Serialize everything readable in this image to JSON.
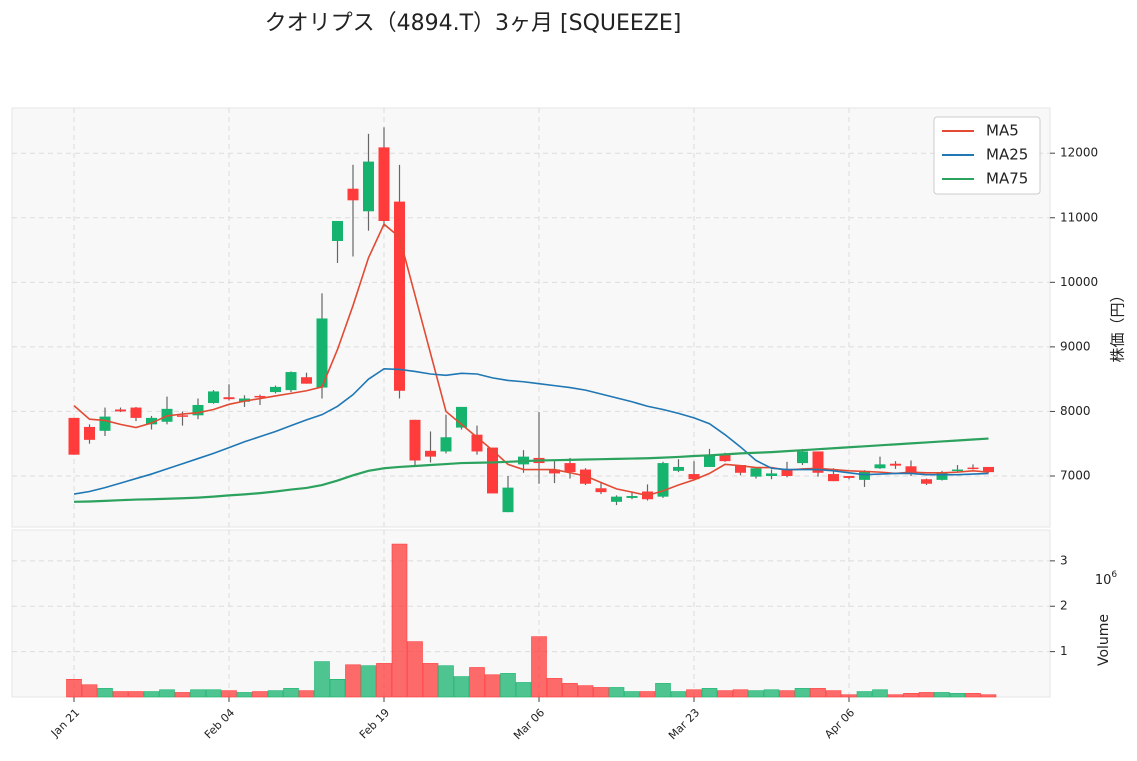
{
  "chart_data": {
    "type": "candlestick",
    "title": "クオリプス（4894.T）3ヶ月 [SQUEEZE]",
    "y_label": "株価（円）",
    "categories": [
      "Jan 21",
      null,
      null,
      null,
      null,
      null,
      null,
      null,
      null,
      null,
      "Feb 04",
      null,
      null,
      null,
      null,
      null,
      null,
      null,
      null,
      null,
      "Feb 19",
      null,
      null,
      null,
      null,
      null,
      null,
      null,
      null,
      null,
      "Mar 06",
      null,
      null,
      null,
      null,
      null,
      null,
      null,
      null,
      null,
      "Mar 23",
      null,
      null,
      null,
      null,
      null,
      null,
      null,
      null,
      null,
      "Apr 06",
      null,
      null,
      null,
      null,
      null,
      null,
      null,
      null,
      null
    ],
    "open": [
      7900,
      7760,
      7700,
      8030,
      8060,
      7800,
      7840,
      7940,
      7940,
      8130,
      8220,
      8150,
      8240,
      8300,
      8330,
      8530,
      8370,
      10640,
      11450,
      11100,
      12090,
      11250,
      7870,
      7390,
      7380,
      7750,
      7640,
      7440,
      6440,
      7180,
      7280,
      7100,
      7200,
      7100,
      6810,
      6600,
      6660,
      6760,
      6680,
      7080,
      7030,
      7140,
      7340,
      7170,
      6990,
      7000,
      7110,
      7200,
      7380,
      7030,
      7000,
      6940,
      7120,
      7190,
      7150,
      6950,
      6940,
      7080,
      7130,
      7140
    ],
    "high": [
      7900,
      7800,
      8060,
      8060,
      8070,
      7930,
      8230,
      8000,
      8200,
      8330,
      8420,
      8250,
      8260,
      8400,
      8620,
      8600,
      9830,
      10950,
      11820,
      12300,
      12400,
      11820,
      7870,
      7690,
      7950,
      8070,
      7780,
      7440,
      7000,
      7400,
      7990,
      7230,
      7280,
      7120,
      6890,
      6700,
      6760,
      6870,
      7220,
      7260,
      7230,
      7420,
      7360,
      7170,
      7130,
      7100,
      7220,
      7420,
      7380,
      7120,
      7000,
      7090,
      7300,
      7230,
      7240,
      6960,
      7080,
      7170,
      7180,
      7140
    ],
    "low": [
      7330,
      7500,
      7620,
      7990,
      7850,
      7720,
      7800,
      7780,
      7880,
      8120,
      8170,
      8070,
      8100,
      8280,
      8300,
      8430,
      8200,
      10300,
      10400,
      10800,
      10860,
      8200,
      7160,
      7210,
      7350,
      7720,
      7330,
      6730,
      6440,
      7050,
      6880,
      6890,
      6960,
      6860,
      6720,
      6550,
      6640,
      6620,
      6660,
      7060,
      6950,
      7140,
      7220,
      7010,
      6960,
      6950,
      6980,
      7170,
      6990,
      6920,
      6950,
      6830,
      7110,
      7110,
      7000,
      6860,
      6930,
      7060,
      7100,
      7050
    ],
    "close": [
      7330,
      7560,
      7920,
      8000,
      7900,
      7900,
      8040,
      7920,
      8100,
      8310,
      8190,
      8200,
      8220,
      8380,
      8610,
      8430,
      9440,
      10950,
      11270,
      11870,
      10950,
      8320,
      7240,
      7300,
      7600,
      8070,
      7380,
      6730,
      6820,
      7300,
      7200,
      7040,
      7060,
      6880,
      6750,
      6680,
      6690,
      6640,
      7200,
      7140,
      6950,
      7320,
      7230,
      7050,
      7120,
      7040,
      7000,
      7380,
      7050,
      6920,
      6970,
      7070,
      7180,
      7160,
      7030,
      6880,
      7060,
      7100,
      7110,
      7060
    ],
    "up_color": "#16b36e",
    "down_color": "#ff3b3b",
    "series": [
      {
        "name": "MA5",
        "color": "#e24a33",
        "values": [
          8090,
          7880,
          7860,
          7800,
          7750,
          7820,
          7930,
          7960,
          7980,
          8030,
          8110,
          8160,
          8200,
          8240,
          8280,
          8320,
          8380,
          8960,
          9640,
          10380,
          10900,
          10700,
          9800,
          8900,
          8000,
          7800,
          7600,
          7400,
          7180,
          7100,
          7100,
          7100,
          7050,
          7000,
          6900,
          6800,
          6750,
          6700,
          6770,
          6860,
          6940,
          7040,
          7180,
          7160,
          7130,
          7130,
          7090,
          7110,
          7120,
          7100,
          7080,
          7070,
          7060,
          7040,
          7060,
          7050,
          7050,
          7060,
          7080,
          7060
        ]
      },
      {
        "name": "MA25",
        "color": "#1f77b4",
        "values": [
          6720,
          6760,
          6820,
          6890,
          6960,
          7030,
          7110,
          7190,
          7270,
          7350,
          7440,
          7530,
          7610,
          7690,
          7780,
          7870,
          7950,
          8080,
          8260,
          8500,
          8660,
          8650,
          8620,
          8580,
          8560,
          8590,
          8580,
          8520,
          8480,
          8460,
          8430,
          8400,
          8370,
          8330,
          8270,
          8210,
          8150,
          8080,
          8030,
          7970,
          7900,
          7810,
          7640,
          7450,
          7240,
          7120,
          7100,
          7100,
          7100,
          7080,
          7050,
          7020,
          7030,
          7040,
          7040,
          7020,
          7020,
          7020,
          7030,
          7040
        ]
      },
      {
        "name": "MA75",
        "color": "#2ca25f",
        "values": [
          6600,
          6605,
          6615,
          6625,
          6635,
          6640,
          6648,
          6655,
          6665,
          6680,
          6700,
          6715,
          6735,
          6760,
          6790,
          6815,
          6860,
          6930,
          7010,
          7080,
          7120,
          7140,
          7155,
          7170,
          7185,
          7200,
          7205,
          7210,
          7220,
          7230,
          7240,
          7245,
          7250,
          7255,
          7260,
          7265,
          7270,
          7275,
          7285,
          7295,
          7310,
          7320,
          7335,
          7350,
          7360,
          7370,
          7385,
          7400,
          7415,
          7430,
          7445,
          7460,
          7475,
          7490,
          7505,
          7520,
          7535,
          7550,
          7565,
          7580
        ]
      }
    ],
    "ylim": [
      6210,
      12700
    ],
    "yticks": [
      7000,
      8000,
      9000,
      10000,
      11000,
      12000
    ],
    "grid": true,
    "legend": "upper right",
    "volume": {
      "label": "Volume",
      "scale_base": "10",
      "scale_exponent": "6",
      "values": [
        0.39,
        0.27,
        0.19,
        0.12,
        0.12,
        0.12,
        0.16,
        0.1,
        0.16,
        0.16,
        0.14,
        0.1,
        0.12,
        0.14,
        0.19,
        0.14,
        0.78,
        0.39,
        0.71,
        0.69,
        0.74,
        3.37,
        1.22,
        0.74,
        0.69,
        0.45,
        0.65,
        0.49,
        0.52,
        0.32,
        1.33,
        0.41,
        0.3,
        0.25,
        0.21,
        0.21,
        0.12,
        0.12,
        0.3,
        0.12,
        0.16,
        0.19,
        0.14,
        0.16,
        0.14,
        0.16,
        0.14,
        0.19,
        0.19,
        0.14,
        0.05,
        0.12,
        0.16,
        0.05,
        0.08,
        0.1,
        0.1,
        0.08,
        0.08,
        0.05
      ],
      "ylim": [
        0,
        3.68
      ],
      "yticks": [
        1,
        2,
        3
      ]
    }
  }
}
